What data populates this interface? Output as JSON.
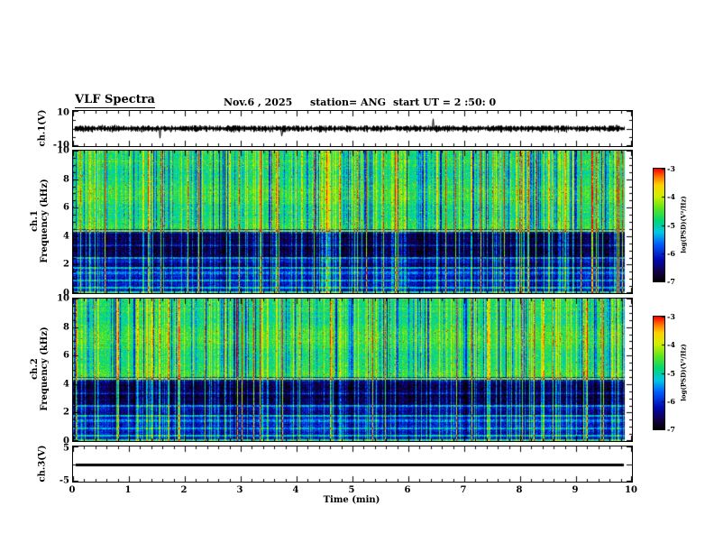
{
  "header": {
    "title": "VLF Spectra",
    "date": "Nov.6  , 2025",
    "station": "station= ANG",
    "start_ut": "start UT =  2 :50: 0"
  },
  "panels": {
    "ch1_wave": {
      "label": "ch.1(V)",
      "ymax": "10",
      "ymin": "-10"
    },
    "ch1_spec": {
      "label_line1": "ch.1",
      "label_line2": "Frequency (kHz)",
      "yticks": [
        "10",
        "8",
        "6",
        "4",
        "2",
        "0"
      ]
    },
    "ch2_spec": {
      "label_line1": "ch.2",
      "label_line2": "Frequency (kHz)",
      "yticks": [
        "10",
        "8",
        "6",
        "4",
        "2",
        "0"
      ]
    },
    "ch3_wave": {
      "label": "ch.3(V)",
      "ymax": "5",
      "ymin": "-5"
    }
  },
  "xaxis": {
    "label": "Time (min)",
    "ticks": [
      "0",
      "1",
      "2",
      "3",
      "4",
      "5",
      "6",
      "7",
      "8",
      "9",
      "10"
    ]
  },
  "colorbar": {
    "label": "log(PSD)(V²/Hz)",
    "ticks": [
      "-3",
      "-4",
      "-5",
      "-6",
      "-7"
    ]
  },
  "colors": {
    "frame": "#000000",
    "background": "#ffffff",
    "palette": [
      "#000000",
      "#0000b4",
      "#0064ff",
      "#00c8e6",
      "#00d764",
      "#5ae61e",
      "#d2f000",
      "#ffd200",
      "#ff7800",
      "#ff0000"
    ]
  },
  "chart_data": [
    {
      "type": "line",
      "title": "ch.1(V) time series",
      "xlabel": "Time (min)",
      "xlim": [
        0,
        10
      ],
      "ylabel": "ch.1(V)",
      "ylim": [
        -10,
        10
      ],
      "description": "Dense broadband noise centered on 0 V, typical amplitude about ±2 V, with occasional impulsive spikes reaching roughly ±6 V; trace spans 0 to about 9.85 min."
    },
    {
      "type": "heatmap",
      "title": "ch.1 VLF spectrogram",
      "xlabel": "Time (min)",
      "xlim": [
        0,
        10
      ],
      "ylabel": "Frequency (kHz)",
      "ylim": [
        0,
        10
      ],
      "zlabel": "log(PSD)(V²/Hz)",
      "zlim": [
        -7,
        -3
      ],
      "palette": "jet-like: black(-7) → blue → cyan → green → yellow → red(-3)",
      "features": [
        "4.5–10 kHz: quasi-continuous green/yellow power near -4.5 with dense vertical impulsive streaks (sferics), brightest reaching -3 (red/orange)",
        "dark blue vertical dropouts near -6 interrupt the high-frequency band",
        "0–4.5 kHz: weak power near -6 to -7 (dark blue/black) with thin horizontal interference lines (cyan/green) near 0.4, 0.9, 1.5, 1.8, 2.5 and 4.4 kHz",
        "near-black absorption bands around 2.6–4.2 kHz",
        "strong impulses appear as bright vertical lines crossing the full 0–10 kHz range",
        "data ends slightly before 10 min (~9.85 min)"
      ]
    },
    {
      "type": "heatmap",
      "title": "ch.2 VLF spectrogram",
      "xlabel": "Time (min)",
      "xlim": [
        0,
        10
      ],
      "ylabel": "Frequency (kHz)",
      "ylim": [
        0,
        10
      ],
      "zlabel": "log(PSD)(V²/Hz)",
      "zlim": [
        -7,
        -3
      ],
      "palette": "jet-like: black(-7) → blue → cyan → green → yellow → red(-3)",
      "features": [
        "same morphology as ch.1: green/yellow 4.5–10 kHz band with vertical sferic streaks and dark dropouts",
        "dark 0–4.5 kHz region with horizontal interference lines and black bands near 2.6–4.2 kHz"
      ]
    },
    {
      "type": "line",
      "title": "ch.3(V) time series",
      "xlabel": "Time (min)",
      "xlim": [
        0,
        10
      ],
      "ylabel": "ch.3(V)",
      "ylim": [
        -5,
        5
      ],
      "description": "Constant 0 V flat thick line from 0 to about 9.85 min (no signal)."
    }
  ]
}
